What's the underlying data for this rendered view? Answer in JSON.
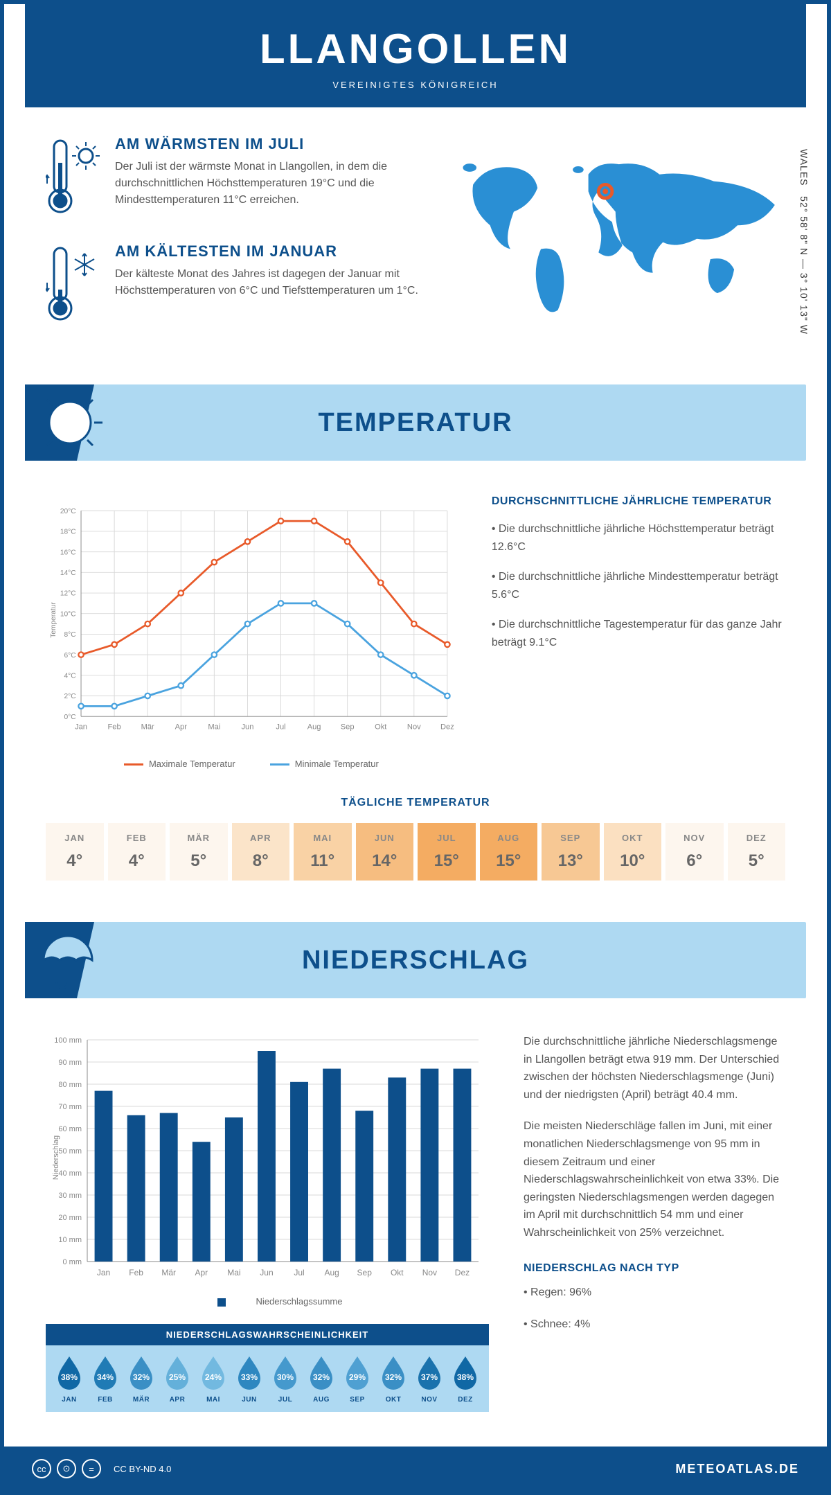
{
  "header": {
    "city": "LLANGOLLEN",
    "country": "VEREINIGTES KÖNIGREICH"
  },
  "coords": {
    "text": "52° 58' 8\" N — 3° 10' 13\" W",
    "region": "WALES"
  },
  "facts": {
    "warm": {
      "title": "AM WÄRMSTEN IM JULI",
      "body": "Der Juli ist der wärmste Monat in Llangollen, in dem die durchschnittlichen Höchsttemperaturen 19°C und die Mindesttemperaturen 11°C erreichen."
    },
    "cold": {
      "title": "AM KÄLTESTEN IM JANUAR",
      "body": "Der kälteste Monat des Jahres ist dagegen der Januar mit Höchsttemperaturen von 6°C und Tiefsttemperaturen um 1°C."
    }
  },
  "sections": {
    "temp": "TEMPERATUR",
    "precip": "NIEDERSCHLAG"
  },
  "months": [
    "Jan",
    "Feb",
    "Mär",
    "Apr",
    "Mai",
    "Jun",
    "Jul",
    "Aug",
    "Sep",
    "Okt",
    "Nov",
    "Dez"
  ],
  "months_uc": [
    "JAN",
    "FEB",
    "MÄR",
    "APR",
    "MAI",
    "JUN",
    "JUL",
    "AUG",
    "SEP",
    "OKT",
    "NOV",
    "DEZ"
  ],
  "temp_chart": {
    "ylabel": "Temperatur",
    "ylim": [
      0,
      20
    ],
    "ystep": 2,
    "yunit": "°C",
    "max_series": [
      6,
      7,
      9,
      12,
      15,
      17,
      19,
      19,
      17,
      13,
      9,
      7
    ],
    "min_series": [
      1,
      1,
      2,
      3,
      6,
      9,
      11,
      11,
      9,
      6,
      4,
      2
    ],
    "colors": {
      "max": "#e85a2a",
      "min": "#4aa3df",
      "grid": "#d8d8d8",
      "axis": "#888888"
    },
    "legend": {
      "max": "Maximale Temperatur",
      "min": "Minimale Temperatur"
    }
  },
  "temp_text": {
    "h": "DURCHSCHNITTLICHE JÄHRLICHE TEMPERATUR",
    "b1": "• Die durchschnittliche jährliche Höchsttemperatur beträgt 12.6°C",
    "b2": "• Die durchschnittliche jährliche Mindesttemperatur beträgt 5.6°C",
    "b3": "• Die durchschnittliche Tagestemperatur für das ganze Jahr beträgt 9.1°C"
  },
  "daily_temp": {
    "title": "TÄGLICHE TEMPERATUR",
    "values": [
      4,
      4,
      5,
      8,
      11,
      14,
      15,
      15,
      13,
      10,
      6,
      5
    ],
    "heat_colors": [
      "#fdf6ee",
      "#fdf6ee",
      "#fdf6ee",
      "#fbe4c9",
      "#f9d2a5",
      "#f6bd80",
      "#f4ac62",
      "#f4ac62",
      "#f7c894",
      "#fbe0c1",
      "#fdf6ee",
      "#fdf6ee"
    ]
  },
  "precip_chart": {
    "ylabel": "Niederschlag",
    "ylim": [
      0,
      100
    ],
    "ystep": 10,
    "yunit": " mm",
    "values": [
      77,
      66,
      67,
      54,
      65,
      95,
      81,
      87,
      68,
      83,
      87,
      87
    ],
    "bar_color": "#0d4f8b",
    "legend": "Niederschlagssumme"
  },
  "precip_text": {
    "p1": "Die durchschnittliche jährliche Niederschlagsmenge in Llangollen beträgt etwa 919 mm. Der Unterschied zwischen der höchsten Niederschlagsmenge (Juni) und der niedrigsten (April) beträgt 40.4 mm.",
    "p2": "Die meisten Niederschläge fallen im Juni, mit einer monatlichen Niederschlagsmenge von 95 mm in diesem Zeitraum und einer Niederschlagswahrscheinlichkeit von etwa 33%. Die geringsten Niederschlagsmengen werden dagegen im April mit durchschnittlich 54 mm und einer Wahrscheinlichkeit von 25% verzeichnet.",
    "h": "NIEDERSCHLAG NACH TYP",
    "t1": "• Regen: 96%",
    "t2": "• Schnee: 4%"
  },
  "prob": {
    "title": "NIEDERSCHLAGSWAHRSCHEINLICHKEIT",
    "values": [
      38,
      34,
      32,
      25,
      24,
      33,
      30,
      32,
      29,
      32,
      37,
      38
    ],
    "color_scale": [
      "#1068a5",
      "#207bb5",
      "#3a8fc5",
      "#64b0da",
      "#72b9e0",
      "#2e87c0",
      "#4599cd",
      "#3a8fc5",
      "#4fa0d2",
      "#3a8fc5",
      "#1a72ad",
      "#1068a5"
    ]
  },
  "footer": {
    "license": "CC BY-ND 4.0",
    "brand": "METEOATLAS.DE"
  },
  "palette": {
    "primary": "#0d4f8b",
    "light": "#aed9f2",
    "accent": "#2a8fd4"
  }
}
